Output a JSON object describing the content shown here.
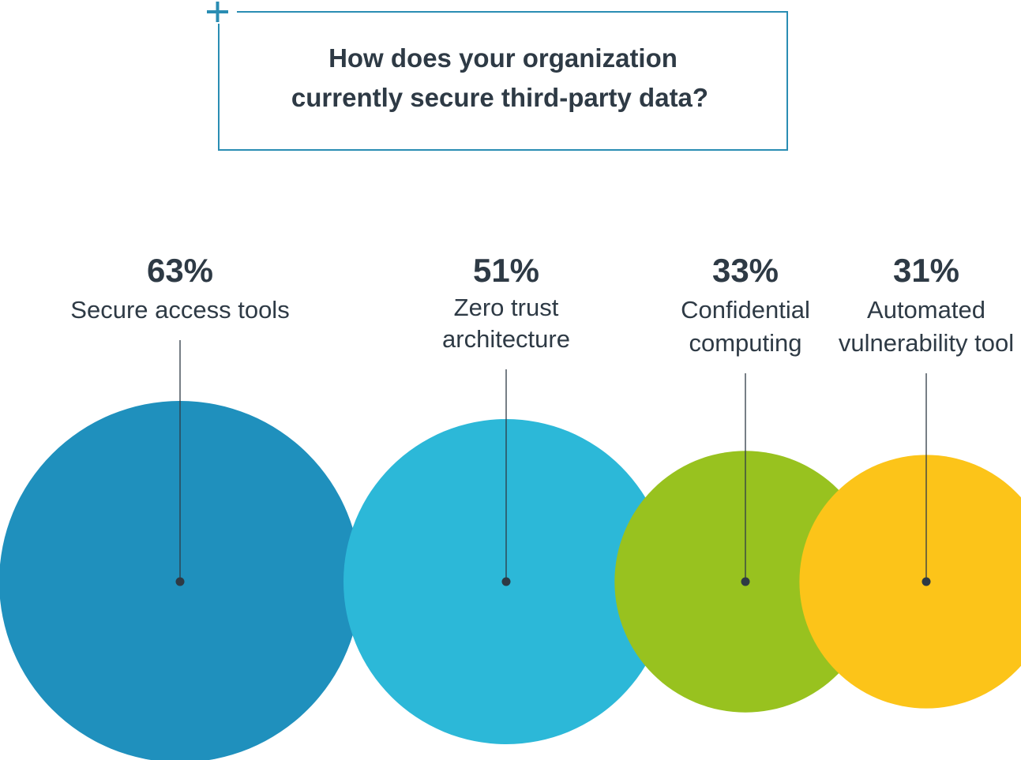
{
  "chart_data": {
    "type": "bubble",
    "title_lines": [
      "How does your organization",
      "currently secure third-party data?"
    ],
    "categories": [
      "Secure access tools",
      "Zero trust architecture",
      "Confidential computing",
      "Automated vulnerability tool"
    ],
    "values": [
      63,
      51,
      33,
      31
    ],
    "value_labels": [
      "63%",
      "51%",
      "33%",
      "31%"
    ],
    "label_lines": [
      [
        "Secure access tools"
      ],
      [
        "Zero trust",
        "architecture"
      ],
      [
        "Confidential",
        "computing"
      ],
      [
        "Automated",
        "vulnerability tool"
      ]
    ],
    "colors": [
      "#1f90bd",
      "#2cb8d8",
      "#98c21f",
      "#fcc419"
    ],
    "text_color": "#2e3a45",
    "frame_color": "#2a8db3",
    "legend": "none",
    "grid": false
  }
}
